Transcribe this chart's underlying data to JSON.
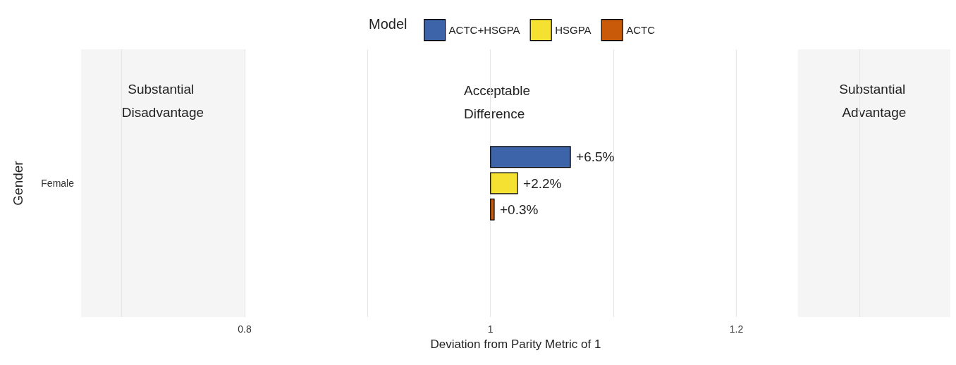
{
  "chart_data": {
    "type": "bar",
    "orientation": "horizontal",
    "legend_title": "Model",
    "legend": "top",
    "xlabel": "Deviation from Parity Metric of 1",
    "ylabel": "Gender",
    "categories": [
      "Female"
    ],
    "series": [
      {
        "name": "ACTC+HSGPA",
        "color": "#3d64a8",
        "values": [
          0.065
        ],
        "base": [
          1
        ],
        "value_labels": [
          "+6.5%"
        ]
      },
      {
        "name": "HSGPA",
        "color": "#f5e132",
        "values": [
          0.022
        ],
        "base": [
          1
        ],
        "value_labels": [
          "+2.2%"
        ]
      },
      {
        "name": "ACTC",
        "color": "#c85a0a",
        "values": [
          0.003
        ],
        "base": [
          1
        ],
        "value_labels": [
          "+0.3%"
        ]
      }
    ],
    "xlim": [
      0.667,
      1.374
    ],
    "xticks": [
      {
        "value": 0.7,
        "label": null
      },
      0.8,
      {
        "value": 0.9,
        "label": null
      },
      1,
      {
        "value": 1.1,
        "label": null
      },
      1.2,
      {
        "value": 1.3,
        "label": null
      }
    ],
    "grid": "x",
    "bands": [
      {
        "axis": "x",
        "from": 0.667,
        "to": 0.8,
        "label": "Substantial Disadvantage",
        "color": "#f5f5f5"
      },
      {
        "axis": "x",
        "from": 1.25,
        "to": 1.374,
        "label": "Substantial Advantage",
        "color": "#f5f5f5"
      }
    ],
    "annotations": [
      "Acceptable Difference"
    ]
  }
}
